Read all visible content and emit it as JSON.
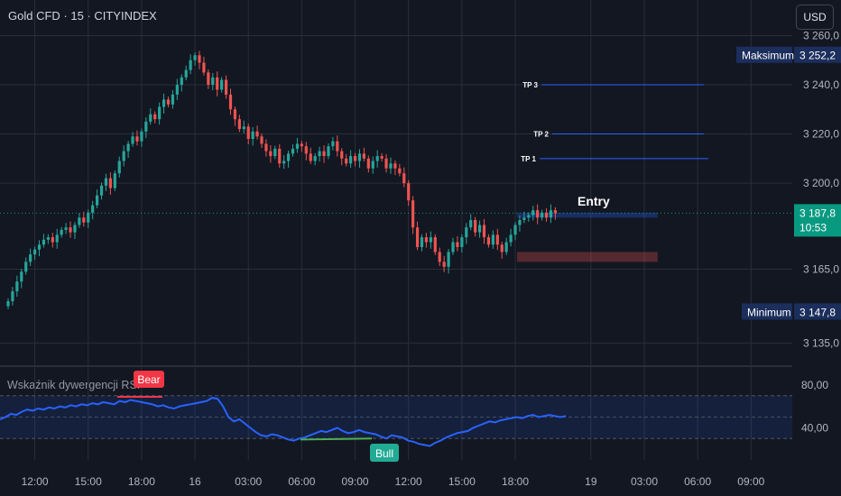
{
  "header": {
    "title": "Gold CFD · 15 · CITYINDEX",
    "currency_button": "USD"
  },
  "price_axis": {
    "ticks": [
      {
        "label": "3 260,0",
        "value": 3260
      },
      {
        "label": "3 240,0",
        "value": 3240
      },
      {
        "label": "3 220,0",
        "value": 3220
      },
      {
        "label": "3 200,0",
        "value": 3200
      },
      {
        "label": "3 165,0",
        "value": 3165
      },
      {
        "label": "3 135,0",
        "value": 3135
      }
    ],
    "current_price": "3 187,8",
    "countdown": "10:53",
    "max_label": "Maksimum",
    "max_value": "3 252,2",
    "min_label": "Minimum",
    "min_value": "3 147,8"
  },
  "rsi_axis": {
    "ticks": [
      {
        "label": "80,00",
        "value": 80
      },
      {
        "label": "40,00",
        "value": 40
      }
    ]
  },
  "time_axis": {
    "ticks": [
      {
        "label": "12:00",
        "bar": 6
      },
      {
        "label": "15:00",
        "bar": 18
      },
      {
        "label": "18:00",
        "bar": 30
      },
      {
        "label": "16",
        "bar": 42
      },
      {
        "label": "03:00",
        "bar": 54
      },
      {
        "label": "06:00",
        "bar": 66
      },
      {
        "label": "09:00",
        "bar": 78
      },
      {
        "label": "12:00",
        "bar": 90
      },
      {
        "label": "15:00",
        "bar": 102
      },
      {
        "label": "18:00",
        "bar": 114
      },
      {
        "label": "19",
        "bar": 131
      },
      {
        "label": "03:00",
        "bar": 143
      },
      {
        "label": "06:00",
        "bar": 155
      },
      {
        "label": "09:00",
        "bar": 167
      }
    ]
  },
  "trade_setup": {
    "entry_label": "Entry",
    "entry_zone": [
      3186,
      3188
    ],
    "stop_zone": [
      3168,
      3172
    ],
    "zone_bars": [
      114,
      146
    ],
    "targets": [
      {
        "label": "TP 3",
        "value": 3240
      },
      {
        "label": "TP 2",
        "value": 3220
      },
      {
        "label": "TP 1",
        "value": 3210
      }
    ]
  },
  "rsi_indicator": {
    "title": "Wskaźnik dywergencji RSI",
    "bear_label": "Bear",
    "bull_label": "Bull",
    "band": [
      30,
      70
    ],
    "mid": 50
  },
  "colors": {
    "up": "#26a69a",
    "down": "#ef5350",
    "rsi": "#2962ff",
    "background": "#131722",
    "grid": "#2a2e39",
    "price_label": "#089981",
    "extreme_label": "#1b2e5c",
    "bear_badge": "#f23645",
    "bull_badge": "#22ab94"
  },
  "chart_data": {
    "type": "candlestick",
    "title": "Gold CFD · 15 · CITYINDEX",
    "price_range": [
      3130,
      3262
    ],
    "x_range_bars": [
      -1,
      175
    ],
    "last_price": 3187.8,
    "max": 3252.2,
    "min": 3147.8,
    "close": [
      3152,
      3156,
      3160,
      3164,
      3168,
      3171,
      3173,
      3175,
      3177,
      3178,
      3176,
      3179,
      3181,
      3182,
      3180,
      3183,
      3186,
      3184,
      3188,
      3191,
      3195,
      3199,
      3202,
      3198,
      3204,
      3209,
      3213,
      3216,
      3219,
      3217,
      3221,
      3225,
      3228,
      3226,
      3231,
      3234,
      3232,
      3236,
      3240,
      3243,
      3246,
      3250,
      3252,
      3249,
      3245,
      3240,
      3243,
      3238,
      3242,
      3236,
      3230,
      3226,
      3222,
      3223,
      3218,
      3221,
      3219,
      3216,
      3213,
      3211,
      3214,
      3208,
      3209,
      3212,
      3214,
      3216,
      3215,
      3212,
      3209,
      3211,
      3213,
      3211,
      3215,
      3217,
      3213,
      3210,
      3208,
      3211,
      3209,
      3212,
      3210,
      3206,
      3209,
      3211,
      3210,
      3206,
      3208,
      3206,
      3204,
      3200,
      3193,
      3182,
      3174,
      3178,
      3176,
      3178,
      3172,
      3168,
      3166,
      3172,
      3176,
      3174,
      3178,
      3182,
      3185,
      3180,
      3183,
      3178,
      3175,
      3179,
      3175,
      3172,
      3176,
      3179,
      3183,
      3185,
      3186,
      3187,
      3189,
      3186,
      3188,
      3186,
      3189,
      3187.8
    ],
    "rsi": [
      48,
      50,
      53,
      52,
      55,
      57,
      56,
      58,
      57,
      59,
      58,
      60,
      59,
      61,
      60,
      62,
      61,
      63,
      62,
      64,
      63,
      62,
      65,
      64,
      66,
      65,
      64,
      63,
      62,
      60,
      61,
      59,
      58,
      60,
      61,
      62,
      63,
      64,
      65,
      68,
      67,
      60,
      50,
      46,
      48,
      44,
      40,
      36,
      33,
      32,
      34,
      33,
      31,
      29,
      28,
      30,
      31,
      33,
      35,
      37,
      36,
      38,
      40,
      37,
      35,
      36,
      38,
      36,
      35,
      34,
      32,
      30,
      33,
      32,
      31,
      28,
      27,
      25,
      24,
      23,
      26,
      28,
      31,
      33,
      35,
      36,
      37,
      40,
      42,
      44,
      46,
      45,
      47,
      48,
      49,
      50,
      49,
      51,
      52,
      50,
      51,
      52,
      51,
      50,
      51
    ]
  }
}
